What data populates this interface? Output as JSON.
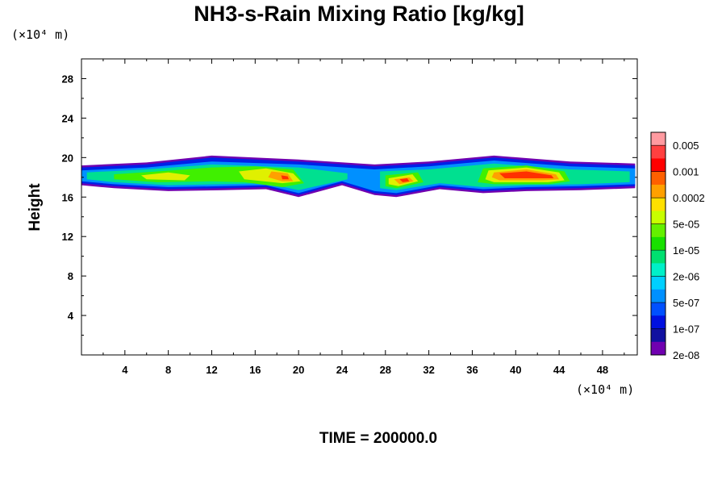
{
  "chart_data": {
    "type": "heatmap",
    "title": "NH3-s-Rain Mixing Ratio [kg/kg]",
    "ylabel": "Height",
    "x_unit": "(×10⁴ m)",
    "y_unit": "(×10⁴ m)",
    "xlim": [
      0,
      51.2
    ],
    "ylim": [
      0,
      30
    ],
    "x_ticks": [
      "4",
      "8",
      "12",
      "16",
      "20",
      "24",
      "28",
      "32",
      "36",
      "40",
      "44",
      "48"
    ],
    "y_ticks": [
      "4",
      "8",
      "12",
      "16",
      "20",
      "24",
      "28"
    ],
    "footer": "TIME = 200000.0",
    "colorbar": {
      "labels": [
        "0.005",
        "0.001",
        "0.0002",
        "5e-05",
        "1e-05",
        "2e-06",
        "5e-07",
        "1e-07",
        "2e-08"
      ],
      "colors": [
        "#ff9aa0",
        "#ff4040",
        "#ff0000",
        "#ff6000",
        "#ffa000",
        "#ffe000",
        "#c8ff00",
        "#64f000",
        "#18e000",
        "#00e070",
        "#00f0c8",
        "#00d0ff",
        "#0090ff",
        "#0050ff",
        "#0010e0",
        "#1010a0",
        "#7000b0"
      ]
    },
    "levels": [
      {
        "name": "2e-08",
        "color": "#7000b0",
        "regions": [
          [
            [
              0,
              19.2
            ],
            [
              6,
              19.5
            ],
            [
              12,
              20.2
            ],
            [
              20,
              19.8
            ],
            [
              27,
              19.3
            ],
            [
              32,
              19.6
            ],
            [
              38,
              20.2
            ],
            [
              45,
              19.6
            ],
            [
              51,
              19.4
            ],
            [
              51,
              16.9
            ],
            [
              46,
              16.7
            ],
            [
              41,
              16.6
            ],
            [
              37,
              16.4
            ],
            [
              33,
              16.8
            ],
            [
              29,
              16.0
            ],
            [
              27,
              16.2
            ],
            [
              24,
              17.2
            ],
            [
              20,
              16.0
            ],
            [
              17,
              16.8
            ],
            [
              13,
              16.7
            ],
            [
              8,
              16.6
            ],
            [
              3,
              16.9
            ],
            [
              0,
              17.2
            ]
          ]
        ]
      },
      {
        "name": "1e-07",
        "color": "#0020e8",
        "regions": [
          [
            [
              0,
              19.0
            ],
            [
              6,
              19.3
            ],
            [
              12,
              20.0
            ],
            [
              20,
              19.6
            ],
            [
              27,
              19.1
            ],
            [
              32,
              19.4
            ],
            [
              38,
              20.0
            ],
            [
              45,
              19.4
            ],
            [
              51,
              19.2
            ],
            [
              51,
              17.1
            ],
            [
              46,
              16.9
            ],
            [
              41,
              16.8
            ],
            [
              37,
              16.6
            ],
            [
              33,
              17.0
            ],
            [
              29,
              16.2
            ],
            [
              27,
              16.4
            ],
            [
              24,
              17.4
            ],
            [
              20,
              16.2
            ],
            [
              17,
              17.0
            ],
            [
              13,
              16.9
            ],
            [
              8,
              16.8
            ],
            [
              3,
              17.1
            ],
            [
              0,
              17.4
            ]
          ]
        ]
      },
      {
        "name": "5e-07",
        "color": "#0090ff",
        "regions": [
          [
            [
              0,
              18.7
            ],
            [
              6,
              19.0
            ],
            [
              12,
              19.6
            ],
            [
              20,
              19.3
            ],
            [
              27,
              18.8
            ],
            [
              32,
              19.1
            ],
            [
              38,
              19.7
            ],
            [
              45,
              19.1
            ],
            [
              51,
              18.9
            ],
            [
              51,
              17.3
            ],
            [
              46,
              17.1
            ],
            [
              41,
              17.0
            ],
            [
              37,
              16.8
            ],
            [
              33,
              17.2
            ],
            [
              29,
              16.4
            ],
            [
              27,
              16.6
            ],
            [
              24,
              17.6
            ],
            [
              20,
              16.4
            ],
            [
              17,
              17.2
            ],
            [
              13,
              17.1
            ],
            [
              8,
              17.0
            ],
            [
              3,
              17.3
            ],
            [
              0,
              17.6
            ]
          ]
        ]
      },
      {
        "name": "2e-06",
        "color": "#00e090",
        "regions": [
          [
            [
              0.5,
              18.5
            ],
            [
              6,
              18.8
            ],
            [
              12,
              19.3
            ],
            [
              20,
              19.0
            ],
            [
              24.5,
              18.4
            ],
            [
              24.5,
              17.8
            ],
            [
              20,
              16.7
            ],
            [
              17,
              17.4
            ],
            [
              13,
              17.3
            ],
            [
              8,
              17.2
            ],
            [
              3,
              17.5
            ],
            [
              0.5,
              17.8
            ]
          ],
          [
            [
              27.5,
              18.6
            ],
            [
              32,
              18.8
            ],
            [
              38,
              19.4
            ],
            [
              45,
              18.8
            ],
            [
              50.5,
              18.6
            ],
            [
              50.5,
              17.5
            ],
            [
              46,
              17.3
            ],
            [
              41,
              17.2
            ],
            [
              37,
              17.0
            ],
            [
              33,
              17.4
            ],
            [
              29,
              16.7
            ],
            [
              27.5,
              16.9
            ]
          ]
        ]
      },
      {
        "name": "1e-05",
        "color": "#40f000",
        "regions": [
          [
            [
              3,
              18.3
            ],
            [
              7,
              18.6
            ],
            [
              12,
              19.0
            ],
            [
              16,
              19.1
            ],
            [
              19.5,
              18.8
            ],
            [
              20.5,
              17.4
            ],
            [
              18.5,
              17.0
            ],
            [
              15,
              17.5
            ],
            [
              12,
              17.6
            ],
            [
              7,
              17.5
            ],
            [
              3,
              17.8
            ]
          ],
          [
            [
              28,
              18.2
            ],
            [
              31,
              18.5
            ],
            [
              31.5,
              17.5
            ],
            [
              29,
              16.9
            ],
            [
              28,
              17.1
            ]
          ],
          [
            [
              37,
              18.9
            ],
            [
              41,
              19.2
            ],
            [
              44.5,
              18.6
            ],
            [
              45,
              17.6
            ],
            [
              43,
              17.3
            ],
            [
              38,
              17.3
            ],
            [
              36.5,
              17.5
            ]
          ]
        ]
      },
      {
        "name": "5e-05",
        "color": "#e0f000",
        "regions": [
          [
            [
              5.5,
              18.2
            ],
            [
              8,
              18.5
            ],
            [
              10,
              18.2
            ],
            [
              9.5,
              17.7
            ],
            [
              6,
              17.8
            ]
          ],
          [
            [
              14.5,
              18.6
            ],
            [
              17,
              18.9
            ],
            [
              19.5,
              18.4
            ],
            [
              20.2,
              17.6
            ],
            [
              18.5,
              17.4
            ],
            [
              15,
              17.8
            ]
          ],
          [
            [
              28.3,
              17.9
            ],
            [
              30.5,
              18.3
            ],
            [
              31,
              17.6
            ],
            [
              29.2,
              17.1
            ],
            [
              28.3,
              17.3
            ]
          ],
          [
            [
              37.5,
              18.7
            ],
            [
              41,
              19.0
            ],
            [
              44,
              18.5
            ],
            [
              44.5,
              17.7
            ],
            [
              43,
              17.5
            ],
            [
              38,
              17.5
            ],
            [
              37.2,
              17.8
            ]
          ]
        ]
      },
      {
        "name": "0.0002",
        "color": "#ffa000",
        "regions": [
          [
            [
              17.5,
              18.6
            ],
            [
              19,
              18.4
            ],
            [
              19.5,
              17.6
            ],
            [
              18.5,
              17.6
            ],
            [
              17.2,
              18.0
            ]
          ],
          [
            [
              28.8,
              17.8
            ],
            [
              30.2,
              18.0
            ],
            [
              30.6,
              17.6
            ],
            [
              29.3,
              17.3
            ]
          ],
          [
            [
              38,
              18.5
            ],
            [
              41,
              18.8
            ],
            [
              43.7,
              18.3
            ],
            [
              44,
              17.8
            ],
            [
              42.5,
              17.7
            ],
            [
              38.5,
              17.7
            ],
            [
              37.8,
              18.0
            ]
          ]
        ]
      },
      {
        "name": "0.001",
        "color": "#ff3000",
        "regions": [
          [
            [
              38.5,
              18.4
            ],
            [
              41,
              18.6
            ],
            [
              43.3,
              18.2
            ],
            [
              43.5,
              17.9
            ],
            [
              42,
              17.9
            ],
            [
              39,
              17.9
            ]
          ],
          [
            [
              29.3,
              17.8
            ],
            [
              30,
              17.9
            ],
            [
              30.2,
              17.6
            ],
            [
              29.6,
              17.5
            ]
          ],
          [
            [
              18.4,
              18.2
            ],
            [
              19,
              18.1
            ],
            [
              19.1,
              17.8
            ],
            [
              18.5,
              17.8
            ]
          ]
        ]
      }
    ]
  }
}
